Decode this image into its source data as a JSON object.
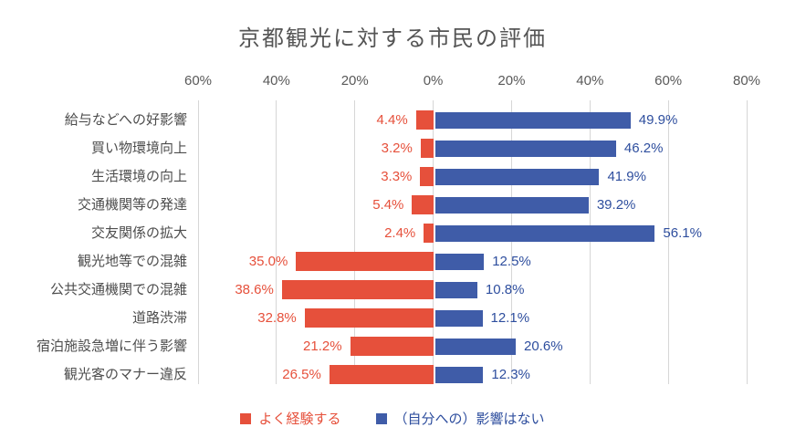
{
  "title": "京都観光に対する市民の評価",
  "axis": {
    "tick_labels": [
      "60%",
      "40%",
      "20%",
      "0%",
      "20%",
      "40%",
      "60%",
      "80%"
    ],
    "min": -60,
    "max": 80,
    "step": 20
  },
  "legend": {
    "items": [
      {
        "label": "よく経験する",
        "color": "#E6503B",
        "text_color": "#E6503B"
      },
      {
        "label": "（自分への）影響はない",
        "color": "#3F5CA8",
        "text_color": "#2E4E9E"
      }
    ]
  },
  "colors": {
    "negative_bar": "#E6503B",
    "positive_bar": "#3F5CA8",
    "negative_value_text": "#E6503B",
    "positive_value_text": "#2E4E9E",
    "gridline": "#D6D6D6",
    "axis_tick_text": "#595959",
    "category_text": "#4D4D4D",
    "title_text": "#555555",
    "background": "#FFFFFF"
  },
  "chart_data": {
    "type": "bar",
    "variant": "horizontal-diverging",
    "title": "京都観光に対する市民の評価",
    "categories": [
      "給与などへの好影響",
      "買い物環境向上",
      "生活環境の向上",
      "交通機関等の発達",
      "交友関係の拡大",
      "観光地等での混雑",
      "公共交通機関での混雑",
      "道路渋滞",
      "宿泊施設急増に伴う影響",
      "観光客のマナー違反"
    ],
    "series": [
      {
        "name": "よく経験する",
        "side": "negative",
        "values": [
          4.4,
          3.2,
          3.3,
          5.4,
          2.4,
          35.0,
          38.6,
          32.8,
          21.2,
          26.5
        ]
      },
      {
        "name": "（自分への）影響はない",
        "side": "positive",
        "values": [
          49.9,
          46.2,
          41.9,
          39.2,
          56.1,
          12.5,
          10.8,
          12.1,
          20.6,
          12.3
        ]
      }
    ],
    "value_suffix": "%",
    "value_decimals": 1,
    "xlim": [
      -60,
      80
    ],
    "grid": true,
    "legend_position": "bottom"
  }
}
